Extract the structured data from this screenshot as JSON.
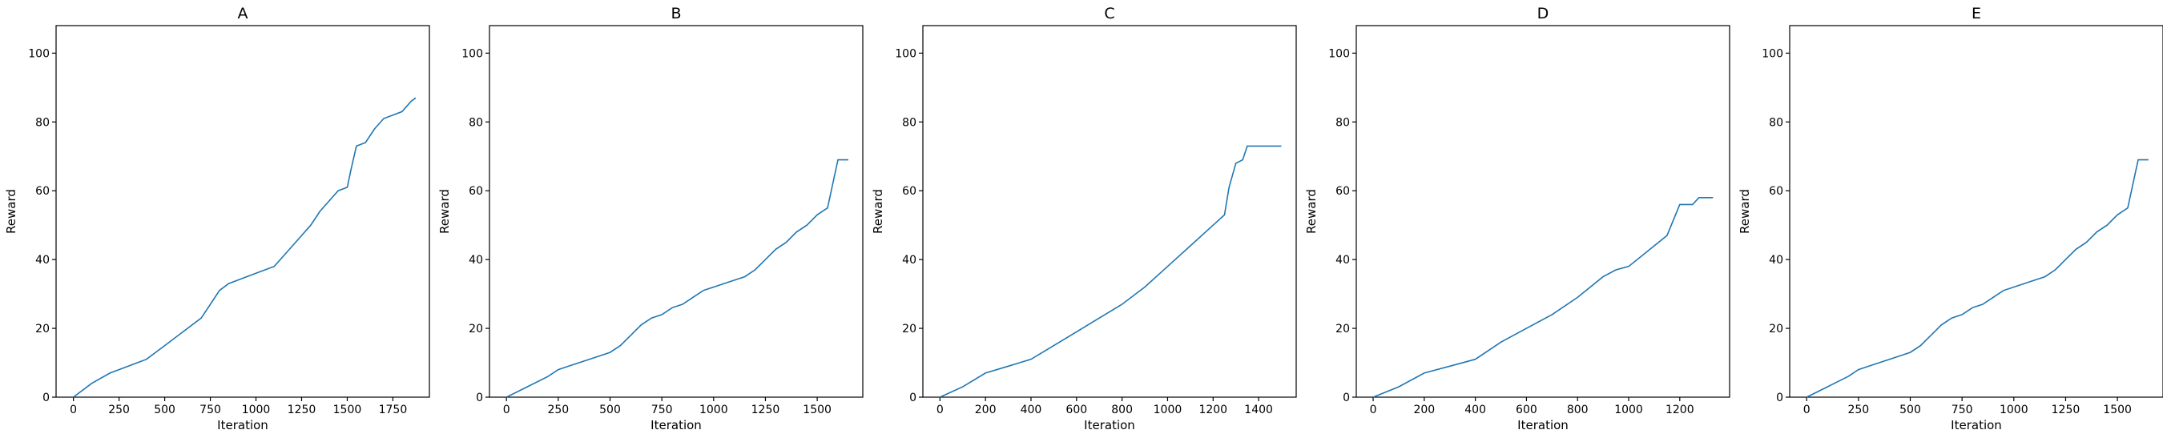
{
  "style": {
    "line_color": "#1f77b4"
  },
  "chart_data": [
    {
      "type": "line",
      "title": "A",
      "xlabel": "Iteration",
      "ylabel": "Reward",
      "xlim": [
        -95,
        1950
      ],
      "ylim": [
        0,
        108
      ],
      "xticks": [
        0,
        250,
        500,
        750,
        1000,
        1250,
        1500,
        1750
      ],
      "yticks": [
        0,
        20,
        40,
        60,
        80,
        100
      ],
      "grid": false,
      "series": [
        {
          "x": [
            0,
            100,
            200,
            250,
            350,
            400,
            450,
            500,
            600,
            700,
            750,
            800,
            850,
            900,
            1000,
            1100,
            1150,
            1200,
            1250,
            1300,
            1350,
            1400,
            1450,
            1500,
            1520,
            1550,
            1600,
            1650,
            1700,
            1750,
            1800,
            1850,
            1875
          ],
          "y": [
            0,
            4,
            7,
            8,
            10,
            11,
            13,
            15,
            19,
            23,
            27,
            31,
            33,
            34,
            36,
            38,
            41,
            44,
            47,
            50,
            54,
            57,
            60,
            61,
            66,
            73,
            74,
            78,
            81,
            82,
            83,
            86,
            87
          ]
        }
      ]
    },
    {
      "type": "line",
      "title": "B",
      "xlabel": "Iteration",
      "ylabel": "Reward",
      "xlim": [
        -82,
        1720
      ],
      "ylim": [
        0,
        108
      ],
      "xticks": [
        0,
        250,
        500,
        750,
        1000,
        1250,
        1500
      ],
      "yticks": [
        0,
        20,
        40,
        60,
        80,
        100
      ],
      "grid": false,
      "series": [
        {
          "x": [
            0,
            100,
            200,
            250,
            300,
            400,
            500,
            550,
            600,
            650,
            700,
            750,
            800,
            850,
            900,
            950,
            1000,
            1100,
            1150,
            1200,
            1250,
            1300,
            1350,
            1400,
            1450,
            1500,
            1550,
            1575,
            1600,
            1650
          ],
          "y": [
            0,
            3,
            6,
            8,
            9,
            11,
            13,
            15,
            18,
            21,
            23,
            24,
            26,
            27,
            29,
            31,
            32,
            34,
            35,
            37,
            40,
            43,
            45,
            48,
            50,
            53,
            55,
            62,
            69,
            69
          ]
        }
      ]
    },
    {
      "type": "line",
      "title": "C",
      "xlabel": "Iteration",
      "ylabel": "Reward",
      "xlim": [
        -75,
        1565
      ],
      "ylim": [
        0,
        108
      ],
      "xticks": [
        0,
        200,
        400,
        600,
        800,
        1000,
        1200,
        1400
      ],
      "yticks": [
        0,
        20,
        40,
        60,
        80,
        100
      ],
      "grid": false,
      "series": [
        {
          "x": [
            0,
            100,
            200,
            300,
            400,
            500,
            600,
            700,
            800,
            900,
            1000,
            1100,
            1200,
            1250,
            1270,
            1300,
            1330,
            1350,
            1400,
            1500
          ],
          "y": [
            0,
            3,
            7,
            9,
            11,
            15,
            19,
            23,
            27,
            32,
            38,
            44,
            50,
            53,
            61,
            68,
            69,
            73,
            73,
            73
          ]
        }
      ]
    },
    {
      "type": "line",
      "title": "D",
      "xlabel": "Iteration",
      "ylabel": "Reward",
      "xlim": [
        -66,
        1395
      ],
      "ylim": [
        0,
        108
      ],
      "xticks": [
        0,
        200,
        400,
        600,
        800,
        1000,
        1200
      ],
      "yticks": [
        0,
        20,
        40,
        60,
        80,
        100
      ],
      "grid": false,
      "series": [
        {
          "x": [
            0,
            100,
            200,
            300,
            400,
            500,
            600,
            700,
            800,
            900,
            950,
            1000,
            1050,
            1100,
            1150,
            1200,
            1250,
            1275,
            1330
          ],
          "y": [
            0,
            3,
            7,
            9,
            11,
            16,
            20,
            24,
            29,
            35,
            37,
            38,
            41,
            44,
            47,
            56,
            56,
            58,
            58
          ]
        }
      ]
    },
    {
      "type": "line",
      "title": "E",
      "xlabel": "Iteration",
      "ylabel": "Reward",
      "xlim": [
        -82,
        1720
      ],
      "ylim": [
        0,
        108
      ],
      "xticks": [
        0,
        250,
        500,
        750,
        1000,
        1250,
        1500
      ],
      "yticks": [
        0,
        20,
        40,
        60,
        80,
        100
      ],
      "grid": false,
      "series": [
        {
          "x": [
            0,
            100,
            200,
            250,
            300,
            400,
            500,
            550,
            600,
            650,
            700,
            750,
            800,
            850,
            900,
            950,
            1000,
            1100,
            1150,
            1200,
            1250,
            1300,
            1350,
            1400,
            1450,
            1500,
            1550,
            1575,
            1600,
            1650
          ],
          "y": [
            0,
            3,
            6,
            8,
            9,
            11,
            13,
            15,
            18,
            21,
            23,
            24,
            26,
            27,
            29,
            31,
            32,
            34,
            35,
            37,
            40,
            43,
            45,
            48,
            50,
            53,
            55,
            62,
            69,
            69
          ]
        }
      ]
    }
  ]
}
